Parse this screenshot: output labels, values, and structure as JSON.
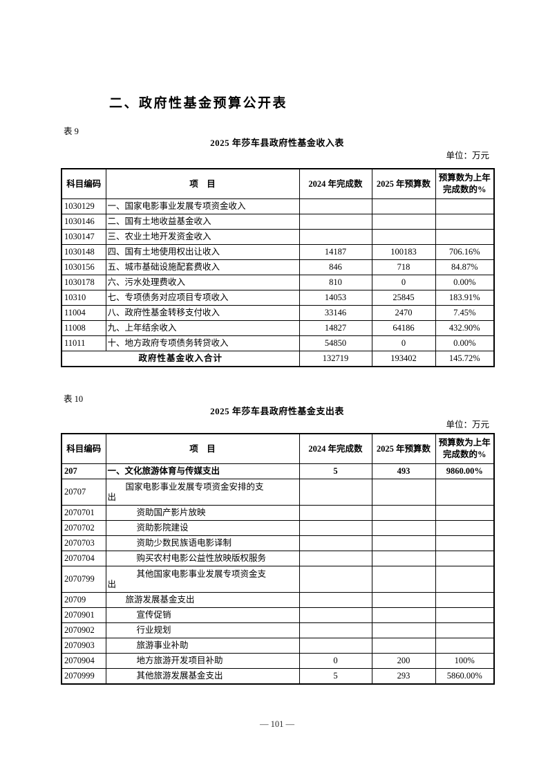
{
  "page": {
    "heading": "二、政府性基金预算公开表",
    "footer": "— 101 —"
  },
  "table9": {
    "label": "表 9",
    "title": "2025 年莎车县政府性基金收入表",
    "unit": "单位：万元",
    "columns": [
      "科目编码",
      "项　目",
      "2024 年完成数",
      "2025 年预算数",
      "预算数为上年\n完成数的%"
    ],
    "rows": [
      {
        "code": "1030129",
        "item": "一、国家电影事业发展专项资金收入",
        "v2024": "",
        "v2025": "",
        "pct": ""
      },
      {
        "code": "1030146",
        "item": "二、国有土地收益基金收入",
        "v2024": "",
        "v2025": "",
        "pct": ""
      },
      {
        "code": "1030147",
        "item": "三、农业土地开发资金收入",
        "v2024": "",
        "v2025": "",
        "pct": ""
      },
      {
        "code": "1030148",
        "item": "四、国有土地使用权出让收入",
        "v2024": "14187",
        "v2025": "100183",
        "pct": "706.16%"
      },
      {
        "code": "1030156",
        "item": "五、城市基础设施配套费收入",
        "v2024": "846",
        "v2025": "718",
        "pct": "84.87%"
      },
      {
        "code": "1030178",
        "item": "六、污水处理费收入",
        "v2024": "810",
        "v2025": "0",
        "pct": "0.00%"
      },
      {
        "code": "10310",
        "item": "七、专项债务对应项目专项收入",
        "v2024": "14053",
        "v2025": "25845",
        "pct": "183.91%"
      },
      {
        "code": "11004",
        "item": "八、政府性基金转移支付收入",
        "v2024": "33146",
        "v2025": "2470",
        "pct": "7.45%"
      },
      {
        "code": "11008",
        "item": "九、上年结余收入",
        "v2024": "14827",
        "v2025": "64186",
        "pct": "432.90%"
      },
      {
        "code": "11011",
        "item": "十、地方政府专项债务转贷收入",
        "v2024": "54850",
        "v2025": "0",
        "pct": "0.00%"
      }
    ],
    "total": {
      "label": "政府性基金收入合计",
      "v2024": "132719",
      "v2025": "193402",
      "pct": "145.72%"
    }
  },
  "table10": {
    "label": "表 10",
    "title": "2025 年莎车县政府性基金支出表",
    "unit": "单位：万元",
    "columns": [
      "科目编码",
      "项　目",
      "2024 年完成数",
      "2025 年预算数",
      "预算数为上年\n完成数的%"
    ],
    "rows": [
      {
        "code": "207",
        "item": "一、文化旅游体育与传媒支出",
        "v2024": "5",
        "v2025": "493",
        "pct": "9860.00%",
        "bold": true
      },
      {
        "code": "20707",
        "item": "国家电影事业发展专项资金安排的支\n出",
        "indent": 1,
        "tall": true,
        "v2024": "",
        "v2025": "",
        "pct": ""
      },
      {
        "code": "2070701",
        "item": "资助国产影片放映",
        "indent": 2,
        "v2024": "",
        "v2025": "",
        "pct": ""
      },
      {
        "code": "2070702",
        "item": "资助影院建设",
        "indent": 2,
        "v2024": "",
        "v2025": "",
        "pct": ""
      },
      {
        "code": "2070703",
        "item": "资助少数民族语电影译制",
        "indent": 2,
        "v2024": "",
        "v2025": "",
        "pct": ""
      },
      {
        "code": "2070704",
        "item": "购买农村电影公益性放映版权服务",
        "indent": 2,
        "v2024": "",
        "v2025": "",
        "pct": ""
      },
      {
        "code": "2070799",
        "item": "其他国家电影事业发展专项资金支\n出",
        "indent": 2,
        "tall": true,
        "v2024": "",
        "v2025": "",
        "pct": ""
      },
      {
        "code": "20709",
        "item": "旅游发展基金支出",
        "indent": 1,
        "v2024": "",
        "v2025": "",
        "pct": ""
      },
      {
        "code": "2070901",
        "item": "宣传促销",
        "indent": 2,
        "v2024": "",
        "v2025": "",
        "pct": ""
      },
      {
        "code": "2070902",
        "item": "行业规划",
        "indent": 2,
        "v2024": "",
        "v2025": "",
        "pct": ""
      },
      {
        "code": "2070903",
        "item": "旅游事业补助",
        "indent": 2,
        "v2024": "",
        "v2025": "",
        "pct": ""
      },
      {
        "code": "2070904",
        "item": "地方旅游开发项目补助",
        "indent": 2,
        "v2024": "0",
        "v2025": "200",
        "pct": "100%"
      },
      {
        "code": "2070999",
        "item": "其他旅游发展基金支出",
        "indent": 2,
        "v2024": "5",
        "v2025": "293",
        "pct": "5860.00%"
      }
    ]
  }
}
